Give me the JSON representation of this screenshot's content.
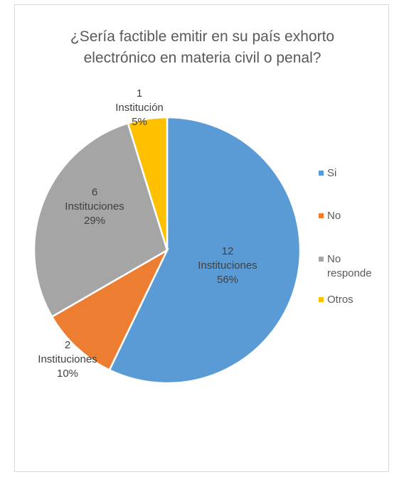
{
  "chart_data": {
    "type": "pie",
    "title_lines": [
      "¿Sería factible emitir en su país exhorto",
      "electrónico en materia civil o penal?"
    ],
    "slices": [
      {
        "name": "Si",
        "value": 12,
        "percent": 56,
        "color": "#5b9bd5",
        "label_lines": [
          "12",
          "Instituciones",
          "56%"
        ]
      },
      {
        "name": "No",
        "value": 2,
        "percent": 10,
        "color": "#ed7d31",
        "label_lines": [
          "2",
          "Instituciones",
          "10%"
        ]
      },
      {
        "name": "No responde",
        "value": 6,
        "percent": 29,
        "color": "#a5a5a5",
        "label_lines": [
          "6",
          "Instituciones",
          "29%"
        ]
      },
      {
        "name": "Otros",
        "value": 1,
        "percent": 5,
        "color": "#ffc000",
        "label_lines": [
          "1",
          "Institución",
          "5%"
        ]
      }
    ],
    "legend": {
      "placement": "right",
      "entries": [
        {
          "lines": [
            "Si"
          ],
          "color": "#5b9bd5"
        },
        {
          "lines": [
            "No"
          ],
          "color": "#ed7d31"
        },
        {
          "lines": [
            "No",
            "responde"
          ],
          "color": "#a5a5a5"
        },
        {
          "lines": [
            "Otros"
          ],
          "color": "#ffc000"
        }
      ]
    }
  }
}
